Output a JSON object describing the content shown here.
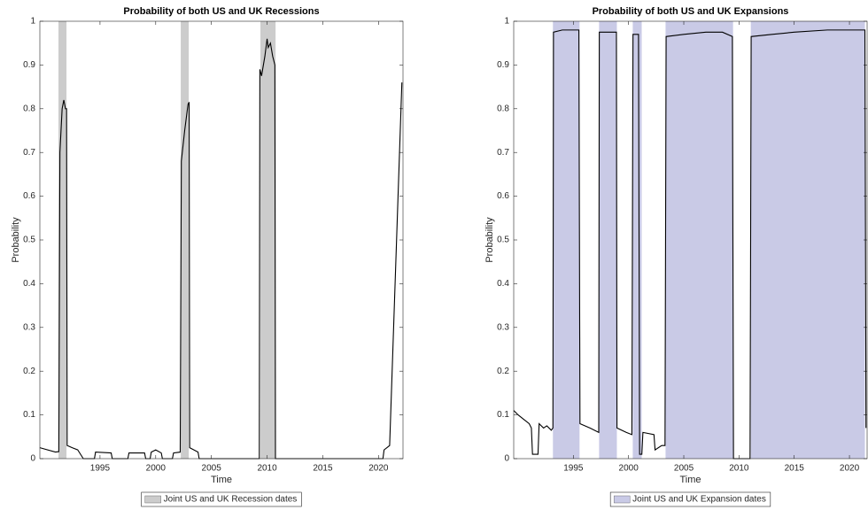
{
  "chart_data": [
    {
      "type": "line",
      "title": "Probability of both US and UK Recessions",
      "xlabel": "Time",
      "ylabel": "Probability",
      "x": [
        1989.6,
        1991.0,
        1991.3,
        1991.4,
        1991.6,
        1991.75,
        1991.9,
        1992.0,
        1992.05,
        1992.5,
        1993.0,
        1993.5,
        1994.5,
        1994.6,
        1996.0,
        1996.1,
        1997.5,
        1997.6,
        1999.0,
        1999.1,
        1999.5,
        1999.6,
        2000.0,
        2000.5,
        2000.6,
        2001.5,
        2001.6,
        2002.2,
        2002.3,
        2002.6,
        2002.9,
        2003.0,
        2003.05,
        2003.8,
        2003.9,
        2009.3,
        2009.35,
        2009.5,
        2009.8,
        2010.0,
        2010.1,
        2010.3,
        2010.5,
        2010.7,
        2010.75,
        2020.4,
        2020.5,
        2021.0,
        2022.1
      ],
      "series": [
        {
          "color": "#000000",
          "values": [
            0.025,
            0.015,
            0.016,
            0.7,
            0.8,
            0.82,
            0.8,
            0.8,
            0.03,
            0.025,
            0.02,
            0.0,
            0.0,
            0.015,
            0.013,
            0.0,
            0.0,
            0.013,
            0.013,
            0.0,
            0.0,
            0.015,
            0.02,
            0.013,
            0.0,
            0.0,
            0.013,
            0.015,
            0.68,
            0.75,
            0.81,
            0.815,
            0.025,
            0.015,
            0.0,
            0.0,
            0.89,
            0.875,
            0.92,
            0.96,
            0.94,
            0.95,
            0.92,
            0.9,
            0.0,
            0.0,
            0.02,
            0.03,
            0.86
          ]
        }
      ],
      "shaded": {
        "name": "Joint US and UK Recession dates",
        "color": "#cccccc",
        "ranges": [
          [
            1991.27,
            1991.99
          ],
          [
            2002.25,
            2002.97
          ],
          [
            2009.4,
            2010.76
          ]
        ]
      },
      "xlim": [
        1989.6,
        2022.2
      ],
      "ylim": [
        0,
        1
      ],
      "xticks": [
        1995,
        2000,
        2005,
        2010,
        2015,
        2020
      ],
      "yticks": [
        0,
        0.1,
        0.2,
        0.3,
        0.4,
        0.5,
        0.6,
        0.7,
        0.8,
        0.9,
        1
      ]
    },
    {
      "type": "line",
      "title": "Probability of both US and UK Expansions",
      "xlabel": "Time",
      "ylabel": "Probability",
      "x": [
        1989.6,
        1990.0,
        1990.5,
        1991.0,
        1991.2,
        1991.3,
        1991.8,
        1991.9,
        1992.3,
        1992.6,
        1993.0,
        1993.15,
        1993.2,
        1994.0,
        1995.5,
        1995.6,
        1996.5,
        1997.3,
        1997.35,
        1998.9,
        1998.95,
        1999.8,
        2000.3,
        2000.4,
        2000.9,
        2001.0,
        2001.2,
        2001.3,
        2002.3,
        2002.4,
        2003.0,
        2003.3,
        2003.4,
        2005.0,
        2007.0,
        2008.5,
        2009.4,
        2009.5,
        2011.0,
        2011.1,
        2013.0,
        2015.0,
        2018.0,
        2021.4,
        2021.5
      ],
      "series": [
        {
          "color": "#000000",
          "values": [
            0.11,
            0.1,
            0.09,
            0.08,
            0.07,
            0.01,
            0.01,
            0.08,
            0.07,
            0.075,
            0.065,
            0.07,
            0.975,
            0.98,
            0.98,
            0.08,
            0.07,
            0.06,
            0.975,
            0.975,
            0.07,
            0.06,
            0.055,
            0.97,
            0.97,
            0.01,
            0.01,
            0.06,
            0.055,
            0.02,
            0.03,
            0.03,
            0.965,
            0.97,
            0.975,
            0.975,
            0.965,
            0.0,
            0.0,
            0.965,
            0.97,
            0.975,
            0.98,
            0.98,
            0.07
          ]
        }
      ],
      "shaded": {
        "name": "Joint US and UK Expansion dates",
        "color": "#c9cae6",
        "ranges": [
          [
            1993.15,
            1995.56
          ],
          [
            1997.33,
            1998.94
          ],
          [
            2000.38,
            2001.19
          ],
          [
            2003.35,
            2009.46
          ],
          [
            2011.07,
            2021.4
          ]
        ]
      },
      "xlim": [
        1989.6,
        2021.6
      ],
      "ylim": [
        0,
        1
      ],
      "xticks": [
        1995,
        2000,
        2005,
        2010,
        2015,
        2020
      ],
      "yticks": [
        0,
        0.1,
        0.2,
        0.3,
        0.4,
        0.5,
        0.6,
        0.7,
        0.8,
        0.9,
        1
      ]
    }
  ]
}
